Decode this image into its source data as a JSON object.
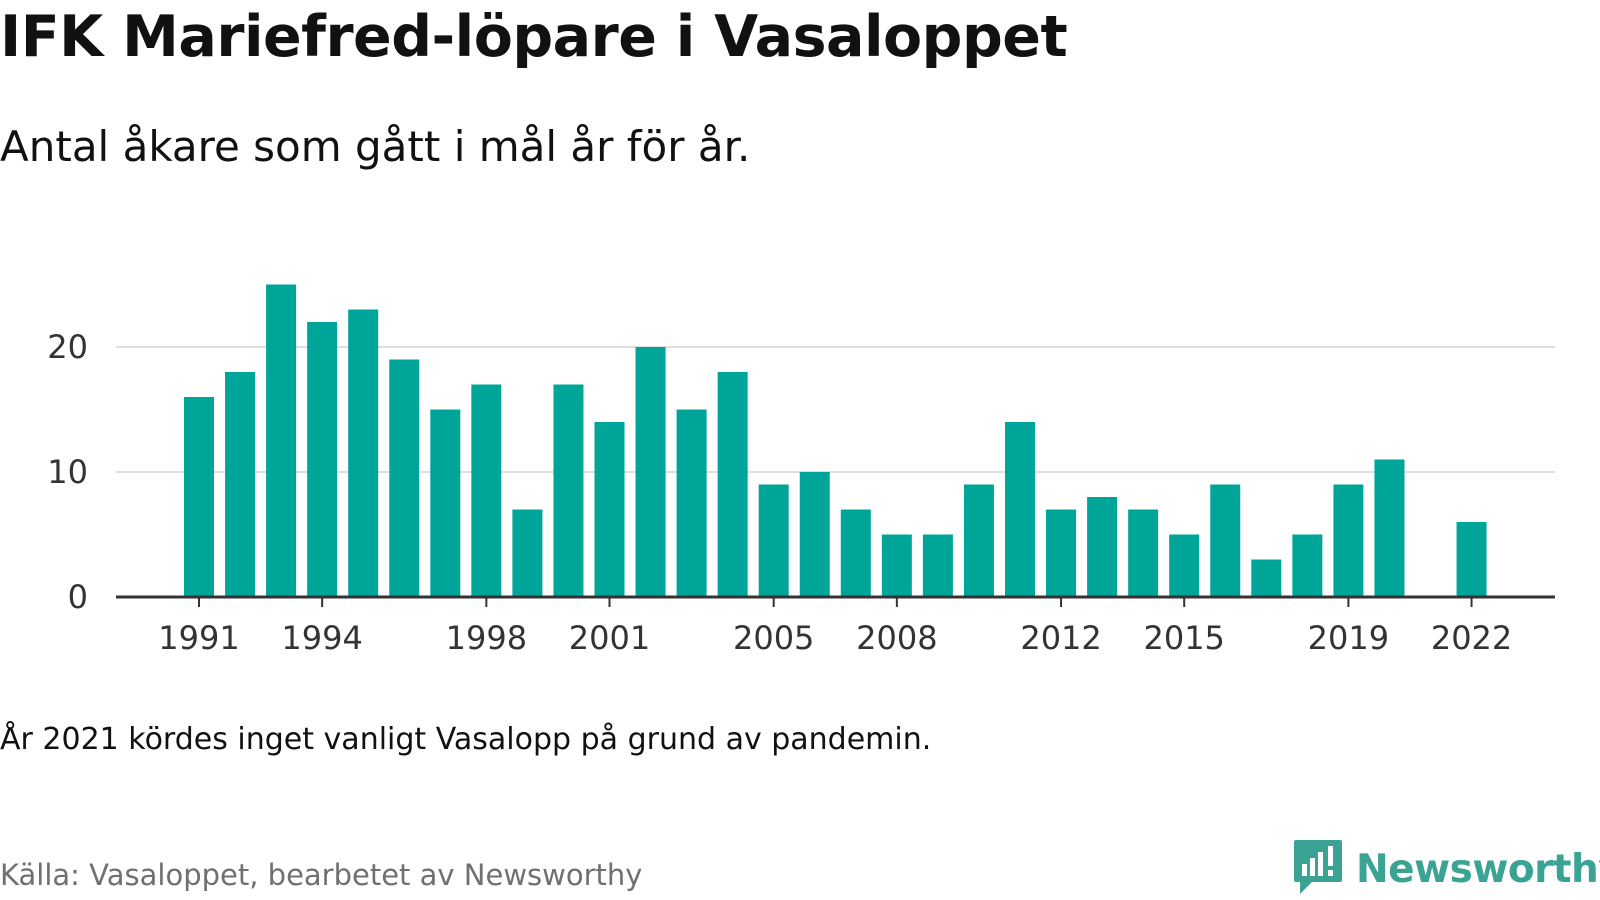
{
  "title": "IFK Mariefred-löpare i Vasaloppet",
  "subtitle": "Antal åkare som gått i mål år för år.",
  "note": "År 2021 kördes inget vanligt Vasalopp på grund av pandemin.",
  "source": "Källa: Vasaloppet, bearbetet av Newsworthy",
  "brand": {
    "name": "Newsworthy",
    "icon": "newsworthy-logo-icon",
    "color": "#3aa394"
  },
  "chart_data": {
    "type": "bar",
    "x": [
      1991,
      1992,
      1993,
      1994,
      1995,
      1996,
      1997,
      1998,
      1999,
      2000,
      2001,
      2002,
      2003,
      2004,
      2005,
      2006,
      2007,
      2008,
      2009,
      2010,
      2011,
      2012,
      2013,
      2014,
      2015,
      2016,
      2017,
      2018,
      2019,
      2020,
      2021,
      2022
    ],
    "values": [
      16,
      18,
      25,
      22,
      23,
      19,
      15,
      17,
      7,
      17,
      14,
      20,
      15,
      18,
      9,
      10,
      7,
      5,
      5,
      9,
      14,
      7,
      8,
      7,
      5,
      9,
      3,
      5,
      9,
      11,
      null,
      6
    ],
    "x_ticks": [
      "1991",
      "1994",
      "1998",
      "2001",
      "2005",
      "2008",
      "2012",
      "2015",
      "2019",
      "2022"
    ],
    "y_ticks": [
      "0",
      "10",
      "20"
    ],
    "ylim": [
      0,
      25
    ],
    "grid": true,
    "bar_color": "#00a59a",
    "xlabel": "",
    "ylabel": ""
  }
}
